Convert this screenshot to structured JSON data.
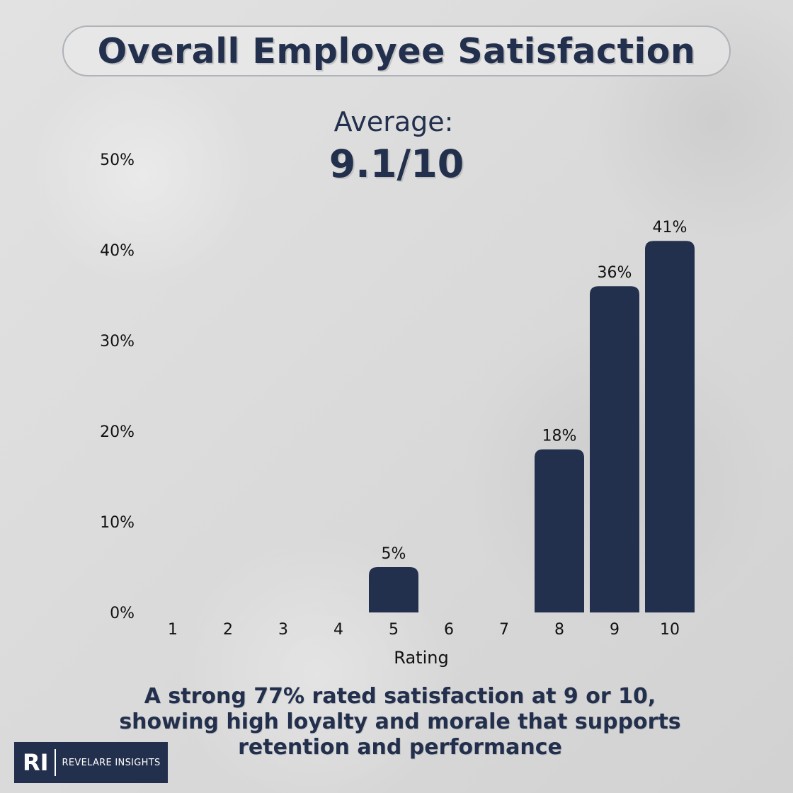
{
  "title": "Overall Employee Satisfaction",
  "average": {
    "label": "Average:",
    "value": "9.1/10"
  },
  "summary": {
    "line1": "A strong 77% rated satisfaction at 9 or 10,",
    "line2": "showing high loyalty and morale that supports",
    "line3": "retention and performance"
  },
  "logo": {
    "mark": "RI",
    "text": "REVELARE INSIGHTS"
  },
  "colors": {
    "bar": "#23304d",
    "text": "#23304d",
    "axis_text": "#111111"
  },
  "chart_data": {
    "type": "bar",
    "categories": [
      "1",
      "2",
      "3",
      "4",
      "5",
      "6",
      "7",
      "8",
      "9",
      "10"
    ],
    "values": [
      0,
      0,
      0,
      0,
      5,
      0,
      0,
      18,
      36,
      41
    ],
    "data_labels": [
      "",
      "",
      "",
      "",
      "5%",
      "",
      "",
      "18%",
      "36%",
      "41%"
    ],
    "xlabel": "Rating",
    "ylabel": "",
    "ylim": [
      0,
      50
    ],
    "yticks": [
      0,
      10,
      20,
      30,
      40,
      50
    ],
    "ytick_labels": [
      "0%",
      "10%",
      "20%",
      "30%",
      "40%",
      "50%"
    ],
    "grid": false,
    "legend": "none"
  }
}
